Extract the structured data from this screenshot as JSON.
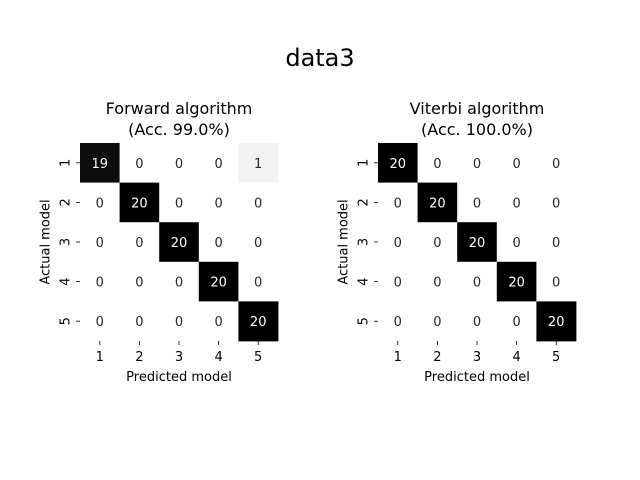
{
  "figure": {
    "suptitle": "data3"
  },
  "chart_data": [
    {
      "type": "heatmap",
      "title_lines": [
        "Forward algorithm",
        "(Acc. 99.0%)"
      ],
      "xlabel": "Predicted model",
      "ylabel": "Actual model",
      "x_categories": [
        "1",
        "2",
        "3",
        "4",
        "5"
      ],
      "y_categories": [
        "1",
        "2",
        "3",
        "4",
        "5"
      ],
      "values": [
        [
          19,
          0,
          0,
          0,
          1
        ],
        [
          0,
          20,
          0,
          0,
          0
        ],
        [
          0,
          0,
          20,
          0,
          0
        ],
        [
          0,
          0,
          0,
          20,
          0
        ],
        [
          0,
          0,
          0,
          0,
          20
        ]
      ],
      "vmin": 0,
      "vmax": 20,
      "colormap": "Greys",
      "colors": {
        "low": "#ffffff",
        "high": "#000000"
      },
      "colorbar": false
    },
    {
      "type": "heatmap",
      "title_lines": [
        "Viterbi algorithm",
        "(Acc. 100.0%)"
      ],
      "xlabel": "Predicted model",
      "ylabel": "Actual model",
      "x_categories": [
        "1",
        "2",
        "3",
        "4",
        "5"
      ],
      "y_categories": [
        "1",
        "2",
        "3",
        "4",
        "5"
      ],
      "values": [
        [
          20,
          0,
          0,
          0,
          0
        ],
        [
          0,
          20,
          0,
          0,
          0
        ],
        [
          0,
          0,
          20,
          0,
          0
        ],
        [
          0,
          0,
          0,
          20,
          0
        ],
        [
          0,
          0,
          0,
          0,
          20
        ]
      ],
      "vmin": 0,
      "vmax": 20,
      "colormap": "Greys",
      "colors": {
        "low": "#ffffff",
        "high": "#000000"
      },
      "colorbar": false
    }
  ]
}
